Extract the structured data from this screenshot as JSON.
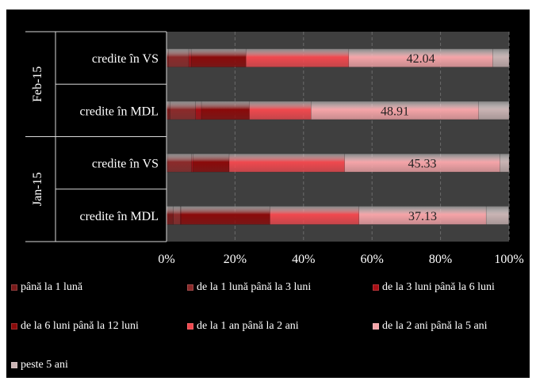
{
  "chart_data": {
    "type": "bar",
    "orientation": "horizontal",
    "stacking": "percent",
    "groups": [
      {
        "label": "Feb-15",
        "categories": [
          "credite în VS",
          "credite în MDL"
        ]
      },
      {
        "label": "Jan-15",
        "categories": [
          "credite în VS",
          "credite în MDL"
        ]
      }
    ],
    "series": [
      {
        "name": "până la 1 lună",
        "color": "#7a1a1a",
        "values": [
          0.5,
          1.0,
          0.3,
          2.0
        ]
      },
      {
        "name": "de la 1 lună până la 3 luni",
        "color": "#8c2a2a",
        "values": [
          6.0,
          7.5,
          7.0,
          2.0
        ]
      },
      {
        "name": "de la 3 luni până la 6 luni",
        "color": "#a80f15",
        "values": [
          0.7,
          1.7,
          0.5,
          0.2
        ]
      },
      {
        "name": "de la 6 luni până la 12 luni",
        "color": "#8b0a0a",
        "values": [
          16.0,
          14.0,
          10.5,
          26.0
        ]
      },
      {
        "name": "de la 1 an până la 2 ani",
        "color": "#f0484e",
        "values": [
          30.0,
          18.0,
          33.7,
          26.0
        ]
      },
      {
        "name": "de la 2 ani până la 5 ani",
        "color": "#f5a4a8",
        "values": [
          42.04,
          48.91,
          45.33,
          37.13
        ]
      },
      {
        "name": "peste 5 ani",
        "color": "#c9b3b3",
        "values": [
          4.76,
          8.89,
          2.67,
          6.57
        ]
      }
    ],
    "data_labels": [
      "42.04",
      "48.91",
      "45.33",
      "37.13"
    ],
    "xlim": [
      0,
      100
    ],
    "xticks": [
      "0%",
      "20%",
      "40%",
      "60%",
      "80%",
      "100%"
    ],
    "grid": true,
    "legend_position": "bottom"
  }
}
